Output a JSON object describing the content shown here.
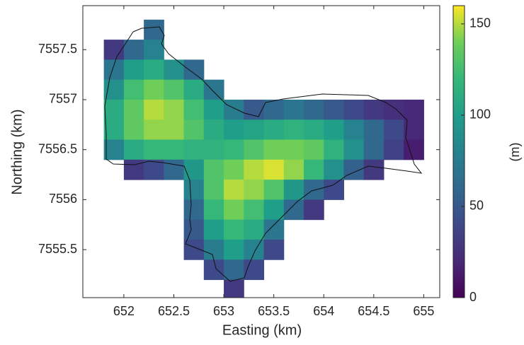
{
  "chart_data": {
    "type": "heatmap",
    "x_label": "Easting (km)",
    "y_label": "Northing (km)",
    "colorbar_label": "(m)",
    "colormap": "viridis",
    "clim": [
      0,
      160
    ],
    "cticks": [
      0,
      50,
      100,
      150
    ],
    "xlim": [
      651.59,
      655.16
    ],
    "ylim": [
      7555.02,
      7557.94
    ],
    "xticks": [
      652,
      652.5,
      653,
      653.5,
      654,
      654.5,
      655
    ],
    "yticks": [
      7555.5,
      7556,
      7556.5,
      7557,
      7557.5
    ],
    "x": [
      651.9,
      652.1,
      652.3,
      652.5,
      652.7,
      652.9,
      653.1,
      653.3,
      653.5,
      653.7,
      653.9,
      654.1,
      654.3,
      654.5,
      654.7,
      654.9
    ],
    "y": [
      7557.7,
      7557.5,
      7557.3,
      7557.1,
      7556.9,
      7556.7,
      7556.5,
      7556.3,
      7556.1,
      7555.9,
      7555.7,
      7555.5,
      7555.3,
      7555.1
    ],
    "z": [
      [
        null,
        null,
        60,
        null,
        null,
        null,
        null,
        null,
        null,
        null,
        null,
        null,
        null,
        null,
        null,
        null
      ],
      [
        30,
        60,
        80,
        null,
        null,
        null,
        null,
        null,
        null,
        null,
        null,
        null,
        null,
        null,
        null,
        null
      ],
      [
        70,
        100,
        110,
        90,
        60,
        null,
        null,
        null,
        null,
        null,
        null,
        null,
        null,
        null,
        null,
        null
      ],
      [
        90,
        125,
        140,
        130,
        110,
        70,
        null,
        null,
        null,
        null,
        null,
        null,
        null,
        null,
        null,
        null
      ],
      [
        110,
        135,
        150,
        145,
        125,
        100,
        75,
        50,
        60,
        70,
        60,
        50,
        40,
        30,
        25,
        20
      ],
      [
        110,
        135,
        145,
        145,
        130,
        110,
        100,
        105,
        110,
        115,
        110,
        100,
        80,
        60,
        40,
        20
      ],
      [
        80,
        110,
        120,
        120,
        115,
        115,
        120,
        130,
        140,
        140,
        135,
        115,
        90,
        60,
        35,
        15
      ],
      [
        null,
        30,
        40,
        60,
        95,
        130,
        140,
        150,
        155,
        145,
        120,
        90,
        55,
        30,
        null,
        null
      ],
      [
        null,
        null,
        null,
        null,
        80,
        130,
        150,
        145,
        130,
        95,
        60,
        40,
        null,
        null,
        null,
        null
      ],
      [
        null,
        null,
        null,
        null,
        60,
        120,
        140,
        125,
        100,
        60,
        30,
        null,
        null,
        null,
        null,
        null
      ],
      [
        null,
        null,
        null,
        null,
        50,
        100,
        120,
        110,
        70,
        null,
        null,
        null,
        null,
        null,
        null,
        null
      ],
      [
        null,
        null,
        null,
        null,
        40,
        75,
        100,
        80,
        40,
        null,
        null,
        null,
        null,
        null,
        null,
        null
      ],
      [
        null,
        null,
        null,
        null,
        null,
        40,
        60,
        40,
        null,
        null,
        null,
        null,
        null,
        null,
        null,
        null
      ],
      [
        null,
        null,
        null,
        null,
        null,
        null,
        30,
        null,
        null,
        null,
        null,
        null,
        null,
        null,
        null,
        null
      ]
    ]
  }
}
